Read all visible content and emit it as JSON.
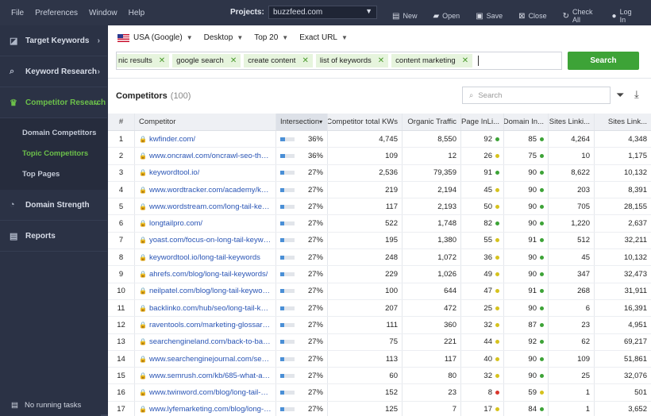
{
  "menu": [
    "File",
    "Preferences",
    "Window",
    "Help"
  ],
  "projects": {
    "label": "Projects:",
    "value": "buzzfeed.com"
  },
  "toolbar": {
    "new": "New",
    "open": "Open",
    "save": "Save",
    "close": "Close",
    "check_all": "Check All",
    "login": "Log In"
  },
  "sidebar": {
    "items": [
      {
        "label": "Target Keywords",
        "icon": "chart-icon"
      },
      {
        "label": "Keyword Research",
        "icon": "search-icon"
      },
      {
        "label": "Competitor Research",
        "icon": "trophy-icon"
      }
    ],
    "sub_items": [
      "Domain Competitors",
      "Topic Competitors",
      "Top Pages"
    ],
    "bottom_items": [
      {
        "label": "Domain Strength",
        "icon": "gauge-icon"
      },
      {
        "label": "Reports",
        "icon": "report-icon"
      }
    ],
    "tasks": "No running tasks"
  },
  "filters": {
    "country": "USA (Google)",
    "device": "Desktop",
    "top": "Top 20",
    "match": "Exact URL"
  },
  "keywords": [
    "nic results",
    "google search",
    "create content",
    "list of keywords",
    "content marketing"
  ],
  "search_button": "Search",
  "section": {
    "title": "Competitors",
    "count": "(100)"
  },
  "table_search_placeholder": "Search",
  "colors": {
    "green": "#3da337",
    "yellow": "#d6c21d",
    "red": "#d9362c",
    "accent_blue": "#4a8fd6"
  },
  "columns": [
    "#",
    "Competitor",
    "Intersection",
    "Competitor total KWs",
    "Organic Traffic",
    "Page InLi...",
    "Domain In...",
    "Sites Linki...",
    "Sites Link..."
  ],
  "rows": [
    {
      "n": "1",
      "url": "kwfinder.com/",
      "int": "36%",
      "total": "4,745",
      "traffic": "8,550",
      "pil": "92",
      "pil_c": "green",
      "dom": "85",
      "dom_c": "green",
      "sl1": "4,264",
      "sl2": "4,348"
    },
    {
      "n": "2",
      "url": "www.oncrawl.com/oncrawl-seo-thought...",
      "int": "36%",
      "total": "109",
      "traffic": "12",
      "pil": "26",
      "pil_c": "yellow",
      "dom": "75",
      "dom_c": "green",
      "sl1": "10",
      "sl2": "1,175"
    },
    {
      "n": "3",
      "url": "keywordtool.io/",
      "int": "27%",
      "total": "2,536",
      "traffic": "79,359",
      "pil": "91",
      "pil_c": "green",
      "dom": "90",
      "dom_c": "green",
      "sl1": "8,622",
      "sl2": "10,132"
    },
    {
      "n": "4",
      "url": "www.wordtracker.com/academy/keywor...",
      "int": "27%",
      "total": "219",
      "traffic": "2,194",
      "pil": "45",
      "pil_c": "yellow",
      "dom": "90",
      "dom_c": "green",
      "sl1": "203",
      "sl2": "8,391"
    },
    {
      "n": "5",
      "url": "www.wordstream.com/long-tail-keywords",
      "int": "27%",
      "total": "117",
      "traffic": "2,193",
      "pil": "50",
      "pil_c": "yellow",
      "dom": "90",
      "dom_c": "green",
      "sl1": "705",
      "sl2": "28,155"
    },
    {
      "n": "6",
      "url": "longtailpro.com/",
      "int": "27%",
      "total": "522",
      "traffic": "1,748",
      "pil": "82",
      "pil_c": "green",
      "dom": "90",
      "dom_c": "green",
      "sl1": "1,220",
      "sl2": "2,637"
    },
    {
      "n": "7",
      "url": "yoast.com/focus-on-long-tail-keywords/",
      "int": "27%",
      "total": "195",
      "traffic": "1,380",
      "pil": "55",
      "pil_c": "yellow",
      "dom": "91",
      "dom_c": "green",
      "sl1": "512",
      "sl2": "32,211"
    },
    {
      "n": "8",
      "url": "keywordtool.io/long-tail-keywords",
      "int": "27%",
      "total": "248",
      "traffic": "1,072",
      "pil": "36",
      "pil_c": "yellow",
      "dom": "90",
      "dom_c": "green",
      "sl1": "45",
      "sl2": "10,132"
    },
    {
      "n": "9",
      "url": "ahrefs.com/blog/long-tail-keywords/",
      "int": "27%",
      "total": "229",
      "traffic": "1,026",
      "pil": "49",
      "pil_c": "yellow",
      "dom": "90",
      "dom_c": "green",
      "sl1": "347",
      "sl2": "32,473"
    },
    {
      "n": "10",
      "url": "neilpatel.com/blog/long-tail-keywords-seo/",
      "int": "27%",
      "total": "100",
      "traffic": "644",
      "pil": "47",
      "pil_c": "yellow",
      "dom": "91",
      "dom_c": "green",
      "sl1": "268",
      "sl2": "31,911"
    },
    {
      "n": "11",
      "url": "backlinko.com/hub/seo/long-tail-keywords",
      "int": "27%",
      "total": "207",
      "traffic": "472",
      "pil": "25",
      "pil_c": "yellow",
      "dom": "90",
      "dom_c": "green",
      "sl1": "6",
      "sl2": "16,391"
    },
    {
      "n": "12",
      "url": "raventools.com/marketing-glossary/long-...",
      "int": "27%",
      "total": "111",
      "traffic": "360",
      "pil": "32",
      "pil_c": "yellow",
      "dom": "87",
      "dom_c": "green",
      "sl1": "23",
      "sl2": "4,951"
    },
    {
      "n": "13",
      "url": "searchengineland.com/back-to-basics-w...",
      "int": "27%",
      "total": "75",
      "traffic": "221",
      "pil": "44",
      "pil_c": "yellow",
      "dom": "92",
      "dom_c": "green",
      "sl1": "62",
      "sl2": "69,217"
    },
    {
      "n": "14",
      "url": "www.searchenginejournal.com/seo-long...",
      "int": "27%",
      "total": "113",
      "traffic": "117",
      "pil": "40",
      "pil_c": "yellow",
      "dom": "90",
      "dom_c": "green",
      "sl1": "109",
      "sl2": "51,861"
    },
    {
      "n": "15",
      "url": "www.semrush.com/kb/685-what-are-lon...",
      "int": "27%",
      "total": "60",
      "traffic": "80",
      "pil": "32",
      "pil_c": "yellow",
      "dom": "90",
      "dom_c": "green",
      "sl1": "25",
      "sl2": "32,076"
    },
    {
      "n": "16",
      "url": "www.twinword.com/blog/long-tail-short-t...",
      "int": "27%",
      "total": "152",
      "traffic": "23",
      "pil": "8",
      "pil_c": "red",
      "dom": "59",
      "dom_c": "yellow",
      "sl1": "1",
      "sl2": "501"
    },
    {
      "n": "17",
      "url": "www.lyfemarketing.com/blog/long-tail-ke...",
      "int": "27%",
      "total": "125",
      "traffic": "7",
      "pil": "17",
      "pil_c": "yellow",
      "dom": "84",
      "dom_c": "green",
      "sl1": "1",
      "sl2": "3,652"
    }
  ]
}
